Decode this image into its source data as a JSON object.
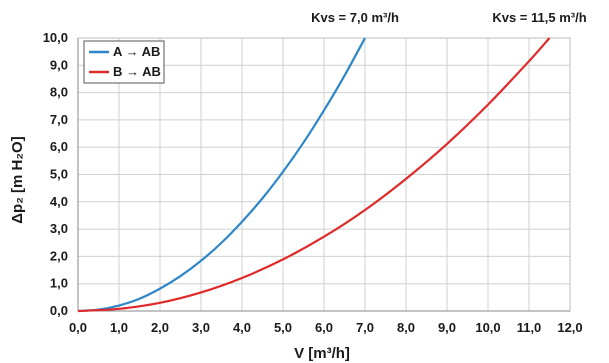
{
  "chart_data": {
    "type": "line",
    "xlabel": "V [m³/h]",
    "ylabel": "Δp₂ [m H₂O]",
    "xlim": [
      0,
      12
    ],
    "ylim": [
      0,
      10
    ],
    "x_ticks": [
      "0,0",
      "1,0",
      "2,0",
      "3,0",
      "4,0",
      "5,0",
      "6,0",
      "7,0",
      "8,0",
      "9,0",
      "10,0",
      "11,0",
      "12,0"
    ],
    "y_ticks": [
      "0,0",
      "1,0",
      "2,0",
      "3,0",
      "4,0",
      "5,0",
      "6,0",
      "7,0",
      "8,0",
      "9,0",
      "10,0"
    ],
    "grid": true,
    "legend_position": "top-left",
    "annotations": [
      {
        "text": "Kvs = 7,0 m³/h",
        "x": 7.0
      },
      {
        "text": "Kvs = 11,5 m³/h",
        "x": 11.5
      }
    ],
    "series": [
      {
        "name": "A → AB",
        "color": "#2e86c8",
        "x": [
          0,
          0.5,
          1.0,
          1.5,
          2.0,
          2.5,
          3.0,
          3.5,
          4.0,
          4.5,
          5.0,
          5.5,
          6.0,
          6.5,
          7.0
        ],
        "y": [
          0,
          0.05,
          0.2,
          0.45,
          0.82,
          1.28,
          1.84,
          2.5,
          3.27,
          4.13,
          5.1,
          6.17,
          7.35,
          8.62,
          10.0
        ]
      },
      {
        "name": "B → AB",
        "color": "#e02a2a",
        "x": [
          0,
          1.0,
          2.0,
          3.0,
          4.0,
          5.0,
          6.0,
          7.0,
          8.0,
          9.0,
          10.0,
          11.0,
          11.5
        ],
        "y": [
          0,
          0.08,
          0.3,
          0.68,
          1.21,
          1.89,
          2.72,
          3.7,
          4.84,
          6.12,
          7.56,
          9.15,
          10.0
        ]
      }
    ]
  }
}
